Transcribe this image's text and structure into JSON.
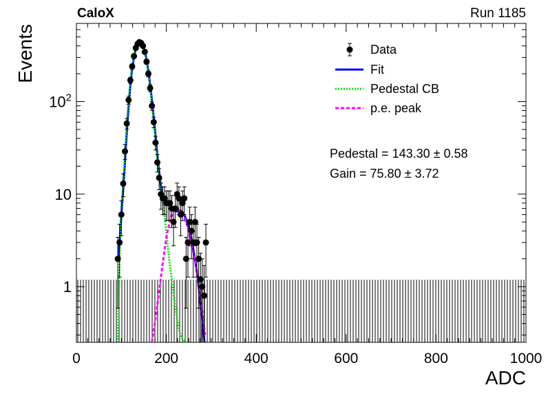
{
  "header": {
    "left_label": "CaloX",
    "right_label": "Run 1185"
  },
  "chart_data": {
    "type": "scatter",
    "title": "",
    "xlabel": "ADC",
    "ylabel": "Events",
    "xlim": [
      0,
      1000
    ],
    "ylim": [
      0.25,
      700
    ],
    "yscale": "log",
    "grid": false,
    "legend_position": "top-right",
    "x_ticks": [
      0,
      200,
      400,
      600,
      800,
      1000
    ],
    "x_tick_labels": [
      "0",
      "200",
      "400",
      "600",
      "800",
      "1000"
    ],
    "y_ticks": [
      1,
      10,
      100
    ],
    "y_tick_labels": [
      "1",
      "10",
      "10^2"
    ],
    "legend": [
      {
        "label": "Data",
        "style": "marker",
        "color": "#000000"
      },
      {
        "label": "Fit",
        "style": "solid",
        "color": "#0000ff"
      },
      {
        "label": "Pedestal CB",
        "style": "dotted",
        "color": "#00dd00"
      },
      {
        "label": "p.e. peak",
        "style": "dashed",
        "color": "#ff00ff"
      }
    ],
    "annotations": [
      "Pedestal = 143.30 ± 0.58",
      "Gain = 75.80 ± 3.72"
    ],
    "fit": {
      "pedestal": 143.3,
      "pedestal_err": 0.58,
      "gain": 75.8,
      "gain_err": 3.72
    },
    "series": [
      {
        "name": "Data",
        "x": [
          92,
          96,
          100,
          104,
          108,
          112,
          116,
          120,
          124,
          128,
          132,
          136,
          140,
          144,
          148,
          152,
          156,
          160,
          164,
          168,
          172,
          176,
          180,
          184,
          188,
          192,
          196,
          200,
          204,
          208,
          212,
          216,
          220,
          224,
          228,
          232,
          236,
          240,
          244,
          248,
          252,
          256,
          260,
          264,
          268,
          272,
          276,
          280,
          284,
          288
        ],
        "values": [
          2,
          3,
          6,
          13,
          29,
          58,
          104,
          170,
          240,
          310,
          380,
          420,
          440,
          430,
          400,
          345,
          270,
          200,
          140,
          90,
          60,
          36,
          22,
          15,
          10,
          9,
          9,
          8,
          8,
          8,
          7,
          5,
          7,
          10,
          9,
          6,
          8,
          9,
          2,
          3,
          5,
          4,
          3,
          5,
          3,
          2,
          1.2,
          1,
          0.8,
          3
        ]
      },
      {
        "name": "Fit",
        "x": [
          93,
          97,
          101,
          105,
          109,
          113,
          117,
          121,
          125,
          129,
          133,
          137,
          141,
          145,
          149,
          153,
          157,
          161,
          165,
          169,
          173,
          177,
          181,
          185,
          189,
          193,
          197,
          201,
          205,
          209,
          213,
          217,
          221,
          225,
          229,
          233,
          237,
          241,
          245,
          249,
          253,
          257,
          261,
          265,
          269,
          273,
          277,
          281,
          285
        ],
        "values": [
          2,
          3.5,
          7,
          13,
          27,
          55,
          100,
          170,
          245,
          320,
          385,
          425,
          445,
          430,
          395,
          340,
          270,
          200,
          140,
          92,
          60,
          38,
          24,
          16,
          11,
          9,
          8.5,
          8,
          7.7,
          7.4,
          7,
          6.7,
          6.5,
          6.5,
          6.6,
          6.6,
          6.3,
          5.8,
          5.2,
          4.5,
          3.8,
          3.1,
          2.4,
          1.8,
          1.3,
          0.9,
          0.6,
          0.4,
          0.25
        ]
      },
      {
        "name": "Pedestal CB",
        "x": [
          92,
          96,
          100,
          104,
          108,
          112,
          116,
          120,
          124,
          128,
          132,
          136,
          140,
          144,
          148,
          152,
          156,
          160,
          164,
          168,
          172,
          176,
          180,
          184,
          188,
          192,
          196,
          200,
          204,
          208,
          212,
          216,
          220,
          224,
          228,
          232,
          236,
          240,
          244
        ],
        "values": [
          0.25,
          2.2,
          7,
          13,
          27,
          55,
          100,
          170,
          245,
          320,
          385,
          425,
          445,
          430,
          395,
          340,
          270,
          200,
          140,
          92,
          60,
          38,
          24,
          16,
          11,
          8,
          5.8,
          3.9,
          2.5,
          1.7,
          1.2,
          0.85,
          0.6,
          0.45,
          0.35,
          0.3,
          0.27,
          0.26,
          0.25
        ]
      },
      {
        "name": "p.e. peak",
        "x": [
          168,
          176,
          184,
          192,
          200,
          208,
          216,
          224,
          232,
          240,
          248,
          256,
          264,
          272,
          280,
          286
        ],
        "values": [
          0.25,
          0.45,
          0.9,
          1.8,
          3.4,
          5.2,
          6.5,
          6.8,
          6.5,
          5.6,
          4.4,
          3,
          1.9,
          1.1,
          0.55,
          0.3
        ]
      }
    ]
  }
}
